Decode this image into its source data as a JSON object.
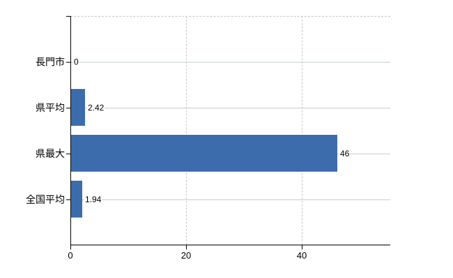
{
  "chart_data": {
    "type": "bar",
    "orientation": "horizontal",
    "title": "",
    "categories": [
      "長門市",
      "県平均",
      "県最大",
      "全国平均"
    ],
    "values": [
      0,
      2.42,
      46,
      1.94
    ],
    "value_labels": [
      "0",
      "2.42",
      "46",
      "1.94"
    ],
    "series": [
      {
        "name": "",
        "values": [
          0,
          2.42,
          46,
          1.94
        ]
      }
    ],
    "x_ticks": [
      0,
      20,
      40
    ],
    "xlim": [
      0,
      55.3
    ],
    "xlabel": "",
    "ylabel": "",
    "grid": true,
    "legend": false,
    "bar_color": "#3d6cad",
    "grid_color_horizontal": "#c5cfc5",
    "grid_color_vertical": "#c9c9c9",
    "axis_color": "#000000",
    "text_color": "#000000",
    "background": "#ffffff"
  }
}
